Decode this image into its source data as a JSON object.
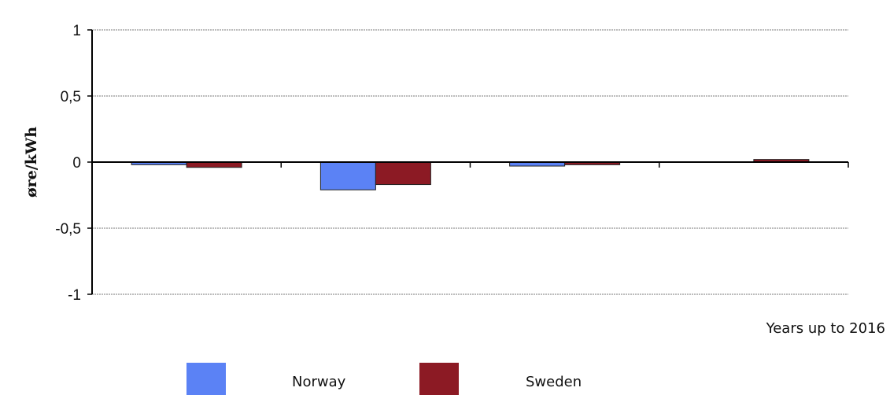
{
  "chart_data": {
    "type": "bar",
    "categories": [
      "",
      "",
      "",
      ""
    ],
    "series": [
      {
        "name": "Norway",
        "color": "#5b82f5",
        "values": [
          -0.02,
          -0.21,
          -0.03,
          0.0
        ]
      },
      {
        "name": "Sweden",
        "color": "#8c1a24",
        "values": [
          -0.04,
          -0.17,
          -0.02,
          0.02
        ]
      }
    ],
    "title": "",
    "xlabel": "Years up to 2016",
    "ylabel": "øre/kWh",
    "ylim": [
      -1,
      1
    ],
    "yticks": [
      1,
      0.5,
      0,
      -0.5,
      -1
    ],
    "ytick_labels": [
      "1",
      "0,5",
      "0",
      "-0,5",
      "-1"
    ],
    "grid": true,
    "legend": "bottom"
  }
}
